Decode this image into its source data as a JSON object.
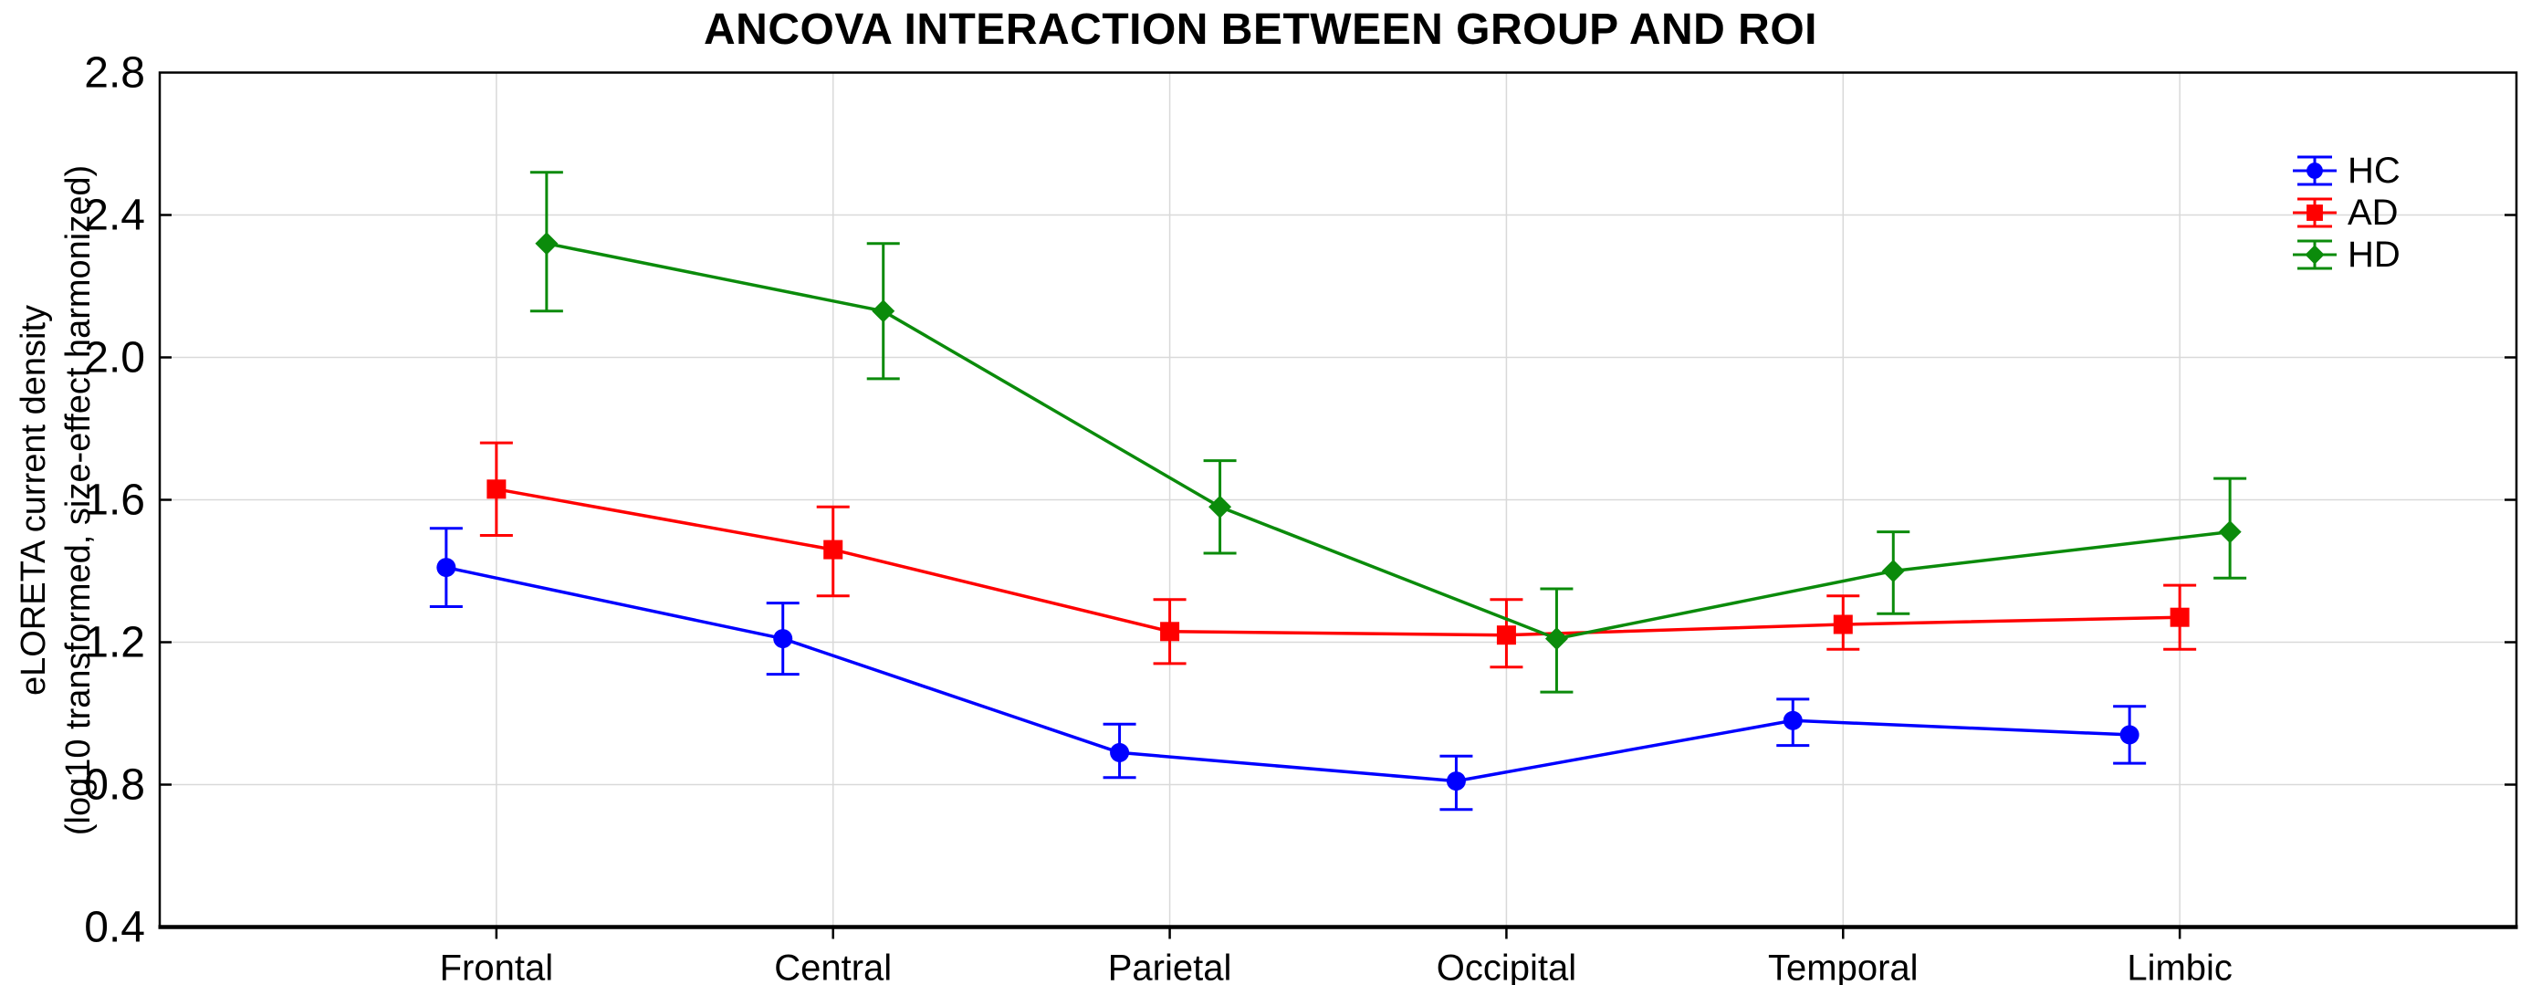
{
  "title": "ANCOVA INTERACTION BETWEEN GROUP AND ROI",
  "colors": {
    "hc_blue": "#0000ff",
    "ad_red": "#ff0000",
    "hd_green": "#0b8b0b",
    "gridline": "#d9d9d9",
    "axis": "#000000",
    "background": "#ffffff"
  },
  "chart_data": {
    "type": "line",
    "title": "ANCOVA INTERACTION BETWEEN GROUP AND ROI",
    "ylabel_line1": "eLORETA current density",
    "ylabel_line2": "(log10 transformed, size-effect harmonized)",
    "xlabel": "",
    "categories": [
      "Frontal",
      "Central",
      "Parietal",
      "Occipital",
      "Temporal",
      "Limbic"
    ],
    "ylim": [
      0.4,
      2.8
    ],
    "yticks": [
      0.4,
      0.8,
      1.2,
      1.6,
      2.0,
      2.4,
      2.8
    ],
    "ytick_labels": [
      "0.4",
      "0.8",
      "1.2",
      "1.6",
      "2.0",
      "2.4",
      "2.8"
    ],
    "grid": true,
    "legend_position": "top-right",
    "error_bars": true,
    "series": [
      {
        "name": "HC",
        "color": "#0000ff",
        "marker": "circle",
        "values": [
          1.41,
          1.21,
          0.89,
          0.81,
          0.98,
          0.94
        ],
        "err_low": [
          1.3,
          1.11,
          0.82,
          0.73,
          0.91,
          0.86
        ],
        "err_high": [
          1.52,
          1.31,
          0.97,
          0.88,
          1.04,
          1.02
        ]
      },
      {
        "name": "AD",
        "color": "#ff0000",
        "marker": "square",
        "values": [
          1.63,
          1.46,
          1.23,
          1.22,
          1.25,
          1.27
        ],
        "err_low": [
          1.5,
          1.33,
          1.14,
          1.13,
          1.18,
          1.18
        ],
        "err_high": [
          1.76,
          1.58,
          1.32,
          1.32,
          1.33,
          1.36
        ]
      },
      {
        "name": "HD",
        "color": "#0b8b0b",
        "marker": "diamond",
        "values": [
          2.32,
          2.13,
          1.58,
          1.21,
          1.4,
          1.51
        ],
        "err_low": [
          2.13,
          1.94,
          1.45,
          1.06,
          1.28,
          1.38
        ],
        "err_high": [
          2.52,
          2.32,
          1.71,
          1.35,
          1.51,
          1.66
        ]
      }
    ]
  }
}
